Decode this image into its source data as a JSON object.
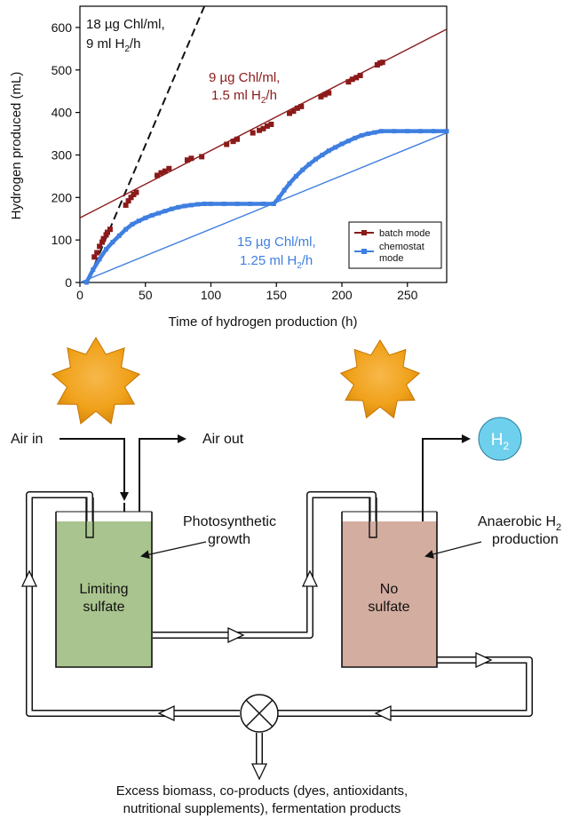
{
  "chart_data": {
    "type": "line",
    "xlabel": "Time of hydrogen production (h)",
    "ylabel": "Hydrogen produced (mL)",
    "xlim": [
      0,
      280
    ],
    "ylim": [
      0,
      650
    ],
    "x_ticks": [
      0,
      50,
      100,
      150,
      200,
      250
    ],
    "y_ticks": [
      0,
      100,
      200,
      300,
      400,
      500,
      600
    ],
    "grid": false,
    "legend_position": "bottom-right",
    "series": [
      {
        "name": "batch mode",
        "color": "#8b1a1a",
        "marker": "square",
        "points": [
          [
            11,
            60
          ],
          [
            13,
            70
          ],
          [
            15,
            85
          ],
          [
            17,
            95
          ],
          [
            18,
            103
          ],
          [
            20,
            112
          ],
          [
            21,
            118
          ],
          [
            23,
            125
          ],
          [
            35,
            182
          ],
          [
            37,
            192
          ],
          [
            39,
            200
          ],
          [
            41,
            207
          ],
          [
            43,
            212
          ],
          [
            59,
            252
          ],
          [
            62,
            258
          ],
          [
            65,
            262
          ],
          [
            68,
            268
          ],
          [
            82,
            288
          ],
          [
            85,
            292
          ],
          [
            93,
            296
          ],
          [
            112,
            325
          ],
          [
            117,
            332
          ],
          [
            120,
            337
          ],
          [
            132,
            352
          ],
          [
            137,
            358
          ],
          [
            140,
            362
          ],
          [
            143,
            368
          ],
          [
            146,
            372
          ],
          [
            160,
            398
          ],
          [
            163,
            403
          ],
          [
            166,
            410
          ],
          [
            169,
            414
          ],
          [
            184,
            437
          ],
          [
            187,
            442
          ],
          [
            190,
            446
          ],
          [
            205,
            472
          ],
          [
            208,
            478
          ],
          [
            211,
            482
          ],
          [
            214,
            487
          ],
          [
            227,
            512
          ],
          [
            229,
            516
          ],
          [
            231,
            518
          ]
        ]
      },
      {
        "name": "chemostat mode",
        "color": "#3f7fe0",
        "marker": "square",
        "points": [
          [
            5,
            0
          ],
          [
            10,
            30
          ],
          [
            15,
            55
          ],
          [
            20,
            78
          ],
          [
            25,
            95
          ],
          [
            30,
            110
          ],
          [
            35,
            125
          ],
          [
            40,
            137
          ],
          [
            45,
            145
          ],
          [
            50,
            152
          ],
          [
            55,
            158
          ],
          [
            60,
            163
          ],
          [
            65,
            168
          ],
          [
            70,
            173
          ],
          [
            75,
            177
          ],
          [
            80,
            180
          ],
          [
            85,
            182
          ],
          [
            90,
            184
          ],
          [
            95,
            185
          ],
          [
            100,
            185
          ],
          [
            110,
            185
          ],
          [
            120,
            185
          ],
          [
            130,
            185
          ],
          [
            140,
            185
          ],
          [
            148,
            185
          ],
          [
            152,
            200
          ],
          [
            156,
            217
          ],
          [
            160,
            233
          ],
          [
            165,
            250
          ],
          [
            170,
            265
          ],
          [
            175,
            278
          ],
          [
            180,
            290
          ],
          [
            185,
            300
          ],
          [
            190,
            310
          ],
          [
            195,
            318
          ],
          [
            200,
            326
          ],
          [
            205,
            333
          ],
          [
            210,
            340
          ],
          [
            215,
            346
          ],
          [
            220,
            350
          ],
          [
            225,
            353
          ],
          [
            230,
            356
          ],
          [
            240,
            356
          ],
          [
            250,
            356
          ],
          [
            260,
            356
          ],
          [
            270,
            356
          ],
          [
            280,
            356
          ]
        ]
      }
    ],
    "fit_lines": [
      {
        "rate_label": "18 µg Chl/ml, 9 ml H₂/h",
        "style": "dashed",
        "color": "#111111",
        "points": [
          [
            0,
            -40
          ],
          [
            95,
            650
          ]
        ]
      },
      {
        "rate_label": "9 µg Chl/ml, 1.5 ml H₂/h",
        "style": "solid",
        "color": "#8b1a1a",
        "points": [
          [
            0,
            152
          ],
          [
            280,
            596
          ]
        ]
      },
      {
        "rate_label": "15 µg Chl/ml, 1.25 ml H₂/h",
        "style": "solid",
        "color": "#3f7fe0",
        "points": [
          [
            0,
            0
          ],
          [
            280,
            352
          ]
        ]
      }
    ],
    "annotations": {
      "black_line_1": "18 µg Chl/ml,",
      "black_line_2": "9 ml H",
      "black_line_2_end": "/h",
      "red_line_1": "9 µg Chl/ml,",
      "red_line_2": "1.5 ml H",
      "red_line_2_end": "/h",
      "blue_line_1": "15 µg Chl/ml,",
      "blue_line_2": "1.25 ml H",
      "blue_line_2_end": "/h",
      "subscript": "2"
    },
    "legend": {
      "batch": "batch mode",
      "chemostat_1": "chemostat",
      "chemostat_2": "mode"
    }
  },
  "diagram": {
    "air_in": "Air in",
    "air_out": "Air out",
    "h2_symbol": "H",
    "h2_sub": "2",
    "tank1_label_1": "Limiting",
    "tank1_label_2": "sulfate",
    "tank1_callout_1": "Photosynthetic",
    "tank1_callout_2": "growth",
    "tank2_label_1": "No",
    "tank2_label_2": "sulfate",
    "tank2_callout_1": "Anaerobic H",
    "tank2_callout_1_sub": "2",
    "tank2_callout_2": "production",
    "output_line_1": "Excess biomass, co-products (dyes, antioxidants,",
    "output_line_2": "nutritional supplements), fermentation products",
    "colors": {
      "sun": "#f0a11a",
      "sun_edge": "#c77600",
      "tank1": "#a9c48e",
      "tank2": "#d3ad9f",
      "h2_bubble": "#6fd0ee"
    }
  }
}
